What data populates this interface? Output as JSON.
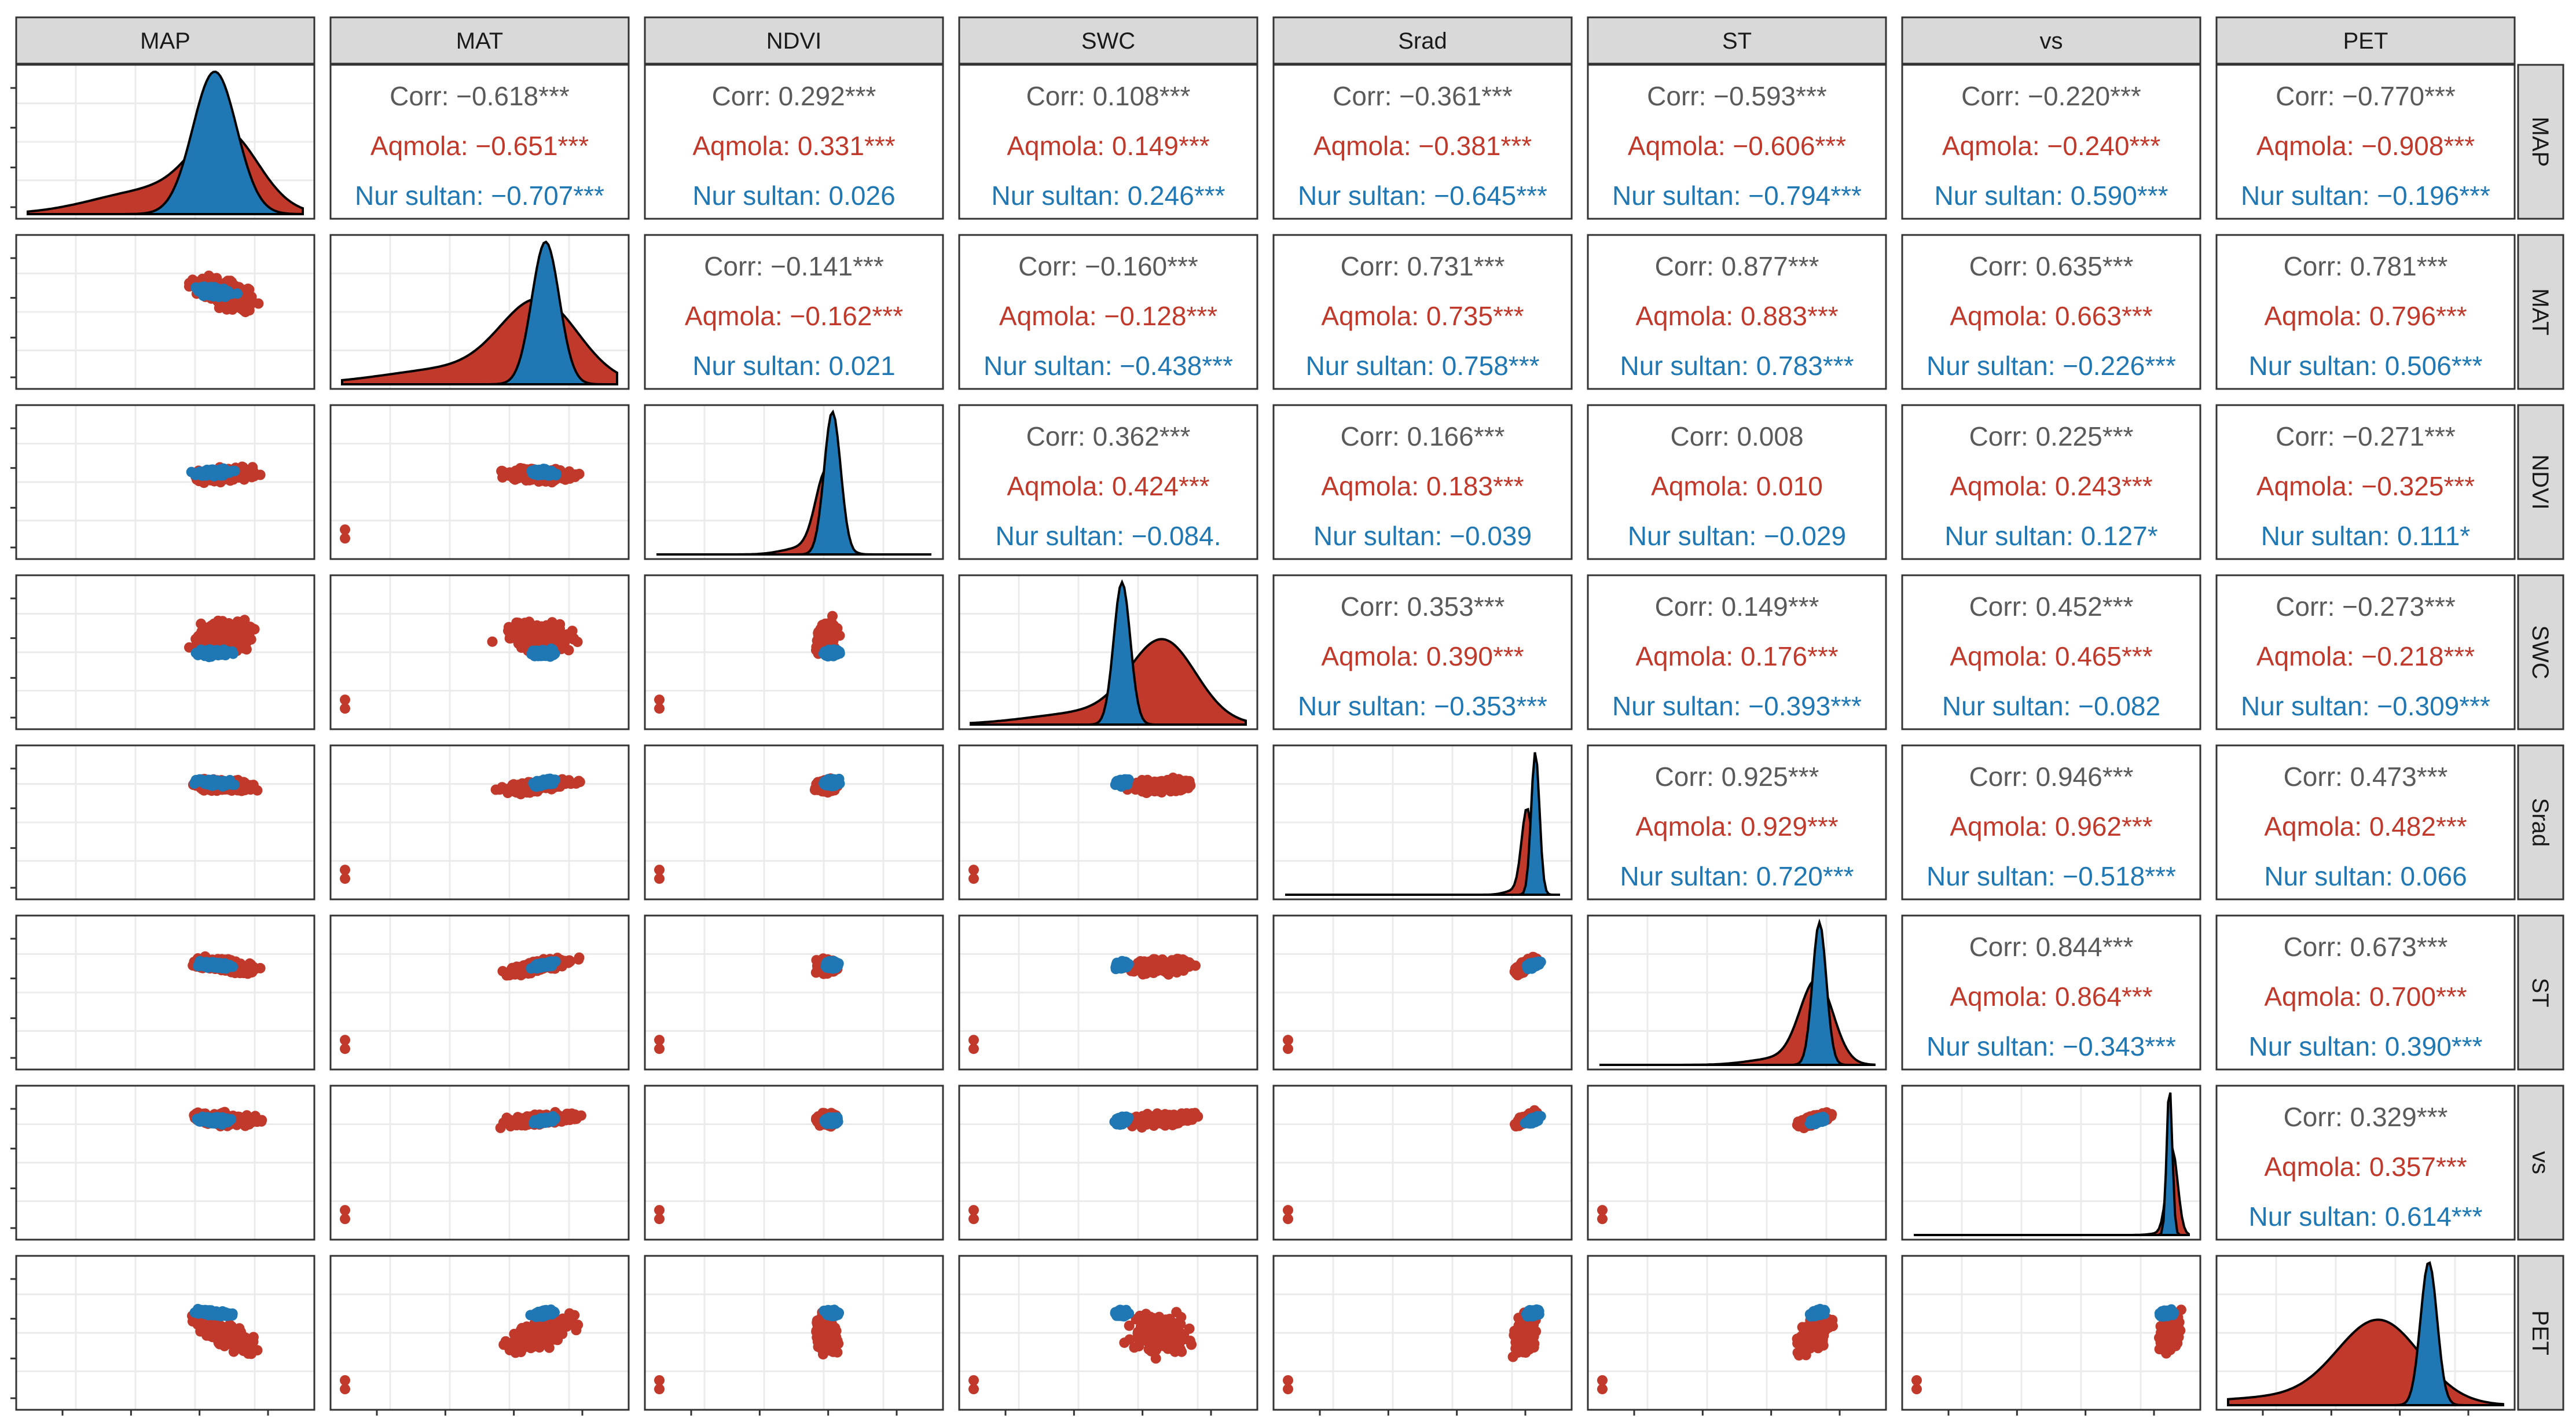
{
  "chart_data": {
    "type": "pairs-matrix",
    "variables": [
      "MAP",
      "MAT",
      "NDVI",
      "SWC",
      "Srad",
      "ST",
      "vs",
      "PET"
    ],
    "groups": [
      {
        "name": "Aqmola",
        "color": "#c0392b"
      },
      {
        "name": "Nur sultan",
        "color": "#1f77b4"
      }
    ],
    "colors": {
      "overall": "#5a5a5a",
      "strip_bg": "#d9d9d9",
      "panel_border": "#333333",
      "grid": "#ebebeb",
      "density_outline": "#000000"
    },
    "labels": {
      "overall": "Corr: ",
      "aqmola": "Aqmola: ",
      "nursultan": "Nur sultan: "
    },
    "correlations": [
      {
        "row": "MAP",
        "col": "MAT",
        "overall": "−0.618***",
        "aqmola": "−0.651***",
        "nursultan": "−0.707***"
      },
      {
        "row": "MAP",
        "col": "NDVI",
        "overall": "0.292***",
        "aqmola": "0.331***",
        "nursultan": "0.026"
      },
      {
        "row": "MAP",
        "col": "SWC",
        "overall": "0.108***",
        "aqmola": "0.149***",
        "nursultan": "0.246***"
      },
      {
        "row": "MAP",
        "col": "Srad",
        "overall": "−0.361***",
        "aqmola": "−0.381***",
        "nursultan": "−0.645***"
      },
      {
        "row": "MAP",
        "col": "ST",
        "overall": "−0.593***",
        "aqmola": "−0.606***",
        "nursultan": "−0.794***"
      },
      {
        "row": "MAP",
        "col": "vs",
        "overall": "−0.220***",
        "aqmola": "−0.240***",
        "nursultan": "0.590***"
      },
      {
        "row": "MAP",
        "col": "PET",
        "overall": "−0.770***",
        "aqmola": "−0.908***",
        "nursultan": "−0.196***"
      },
      {
        "row": "MAT",
        "col": "NDVI",
        "overall": "−0.141***",
        "aqmola": "−0.162***",
        "nursultan": "0.021"
      },
      {
        "row": "MAT",
        "col": "SWC",
        "overall": "−0.160***",
        "aqmola": "−0.128***",
        "nursultan": "−0.438***"
      },
      {
        "row": "MAT",
        "col": "Srad",
        "overall": "0.731***",
        "aqmola": "0.735***",
        "nursultan": "0.758***"
      },
      {
        "row": "MAT",
        "col": "ST",
        "overall": "0.877***",
        "aqmola": "0.883***",
        "nursultan": "0.783***"
      },
      {
        "row": "MAT",
        "col": "vs",
        "overall": "0.635***",
        "aqmola": "0.663***",
        "nursultan": "−0.226***"
      },
      {
        "row": "MAT",
        "col": "PET",
        "overall": "0.781***",
        "aqmola": "0.796***",
        "nursultan": "0.506***"
      },
      {
        "row": "NDVI",
        "col": "SWC",
        "overall": "0.362***",
        "aqmola": "0.424***",
        "nursultan": "−0.084."
      },
      {
        "row": "NDVI",
        "col": "Srad",
        "overall": "0.166***",
        "aqmola": "0.183***",
        "nursultan": "−0.039"
      },
      {
        "row": "NDVI",
        "col": "ST",
        "overall": "0.008",
        "aqmola": "0.010",
        "nursultan": "−0.029"
      },
      {
        "row": "NDVI",
        "col": "vs",
        "overall": "0.225***",
        "aqmola": "0.243***",
        "nursultan": "0.127*"
      },
      {
        "row": "NDVI",
        "col": "PET",
        "overall": "−0.271***",
        "aqmola": "−0.325***",
        "nursultan": "0.111*"
      },
      {
        "row": "SWC",
        "col": "Srad",
        "overall": "0.353***",
        "aqmola": "0.390***",
        "nursultan": "−0.353***"
      },
      {
        "row": "SWC",
        "col": "ST",
        "overall": "0.149***",
        "aqmola": "0.176***",
        "nursultan": "−0.393***"
      },
      {
        "row": "SWC",
        "col": "vs",
        "overall": "0.452***",
        "aqmola": "0.465***",
        "nursultan": "−0.082"
      },
      {
        "row": "SWC",
        "col": "PET",
        "overall": "−0.273***",
        "aqmola": "−0.218***",
        "nursultan": "−0.309***"
      },
      {
        "row": "Srad",
        "col": "ST",
        "overall": "0.925***",
        "aqmola": "0.929***",
        "nursultan": "0.720***"
      },
      {
        "row": "Srad",
        "col": "vs",
        "overall": "0.946***",
        "aqmola": "0.962***",
        "nursultan": "−0.518***"
      },
      {
        "row": "Srad",
        "col": "PET",
        "overall": "0.473***",
        "aqmola": "0.482***",
        "nursultan": "0.066"
      },
      {
        "row": "ST",
        "col": "vs",
        "overall": "0.844***",
        "aqmola": "0.864***",
        "nursultan": "−0.343***"
      },
      {
        "row": "ST",
        "col": "PET",
        "overall": "0.673***",
        "aqmola": "0.700***",
        "nursultan": "0.390***"
      },
      {
        "row": "vs",
        "col": "PET",
        "overall": "0.329***",
        "aqmola": "0.357***",
        "nursultan": "0.614***"
      }
    ],
    "densities": {
      "MAP": {
        "aqmola": {
          "peak": 0.72,
          "width": 0.12,
          "tail": 0.32
        },
        "nursultan": {
          "peak": 0.68,
          "width": 0.08,
          "tail": 0.0
        }
      },
      "MAT": {
        "aqmola": {
          "peak": 0.72,
          "width": 0.14,
          "tail": 0.2
        },
        "nursultan": {
          "peak": 0.74,
          "width": 0.05,
          "tail": 0.0
        }
      },
      "NDVI": {
        "aqmola": {
          "peak": 0.62,
          "width": 0.04,
          "tail": 0.08
        },
        "nursultan": {
          "peak": 0.64,
          "width": 0.03,
          "tail": 0.0
        }
      },
      "SWC": {
        "aqmola": {
          "peak": 0.7,
          "width": 0.12,
          "tail": 0.15
        },
        "nursultan": {
          "peak": 0.55,
          "width": 0.03,
          "tail": 0.0
        }
      },
      "Srad": {
        "aqmola": {
          "peak": 0.88,
          "width": 0.02,
          "tail": 0.05
        },
        "nursultan": {
          "peak": 0.91,
          "width": 0.015,
          "tail": 0.0
        }
      },
      "ST": {
        "aqmola": {
          "peak": 0.79,
          "width": 0.06,
          "tail": 0.08
        },
        "nursultan": {
          "peak": 0.8,
          "width": 0.025,
          "tail": 0.0
        }
      },
      "vs": {
        "aqmola": {
          "peak": 0.94,
          "width": 0.02,
          "tail": 0.02
        },
        "nursultan": {
          "peak": 0.93,
          "width": 0.01,
          "tail": 0.0
        }
      },
      "PET": {
        "aqmola": {
          "peak": 0.55,
          "width": 0.15,
          "tail": 0.1
        },
        "nursultan": {
          "peak": 0.73,
          "width": 0.03,
          "tail": 0.0
        }
      }
    }
  }
}
